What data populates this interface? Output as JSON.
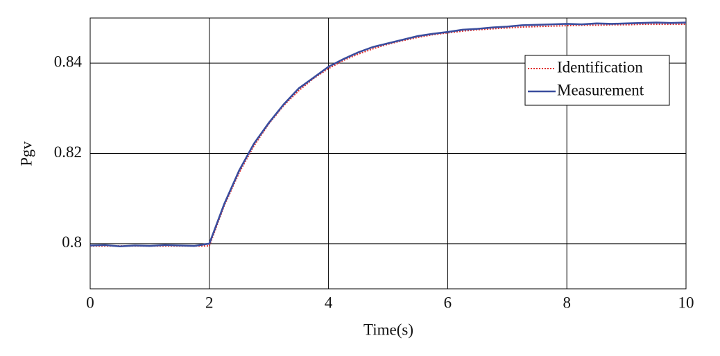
{
  "chart_data": {
    "type": "line",
    "xlabel": "Time(s)",
    "ylabel": "Pgv",
    "x": [
      0,
      0.25,
      0.5,
      0.75,
      1,
      1.25,
      1.5,
      1.75,
      2,
      2.25,
      2.5,
      2.75,
      3,
      3.25,
      3.5,
      3.75,
      4,
      4.25,
      4.5,
      4.75,
      5,
      5.25,
      5.5,
      5.75,
      6,
      6.25,
      6.5,
      6.75,
      7,
      7.25,
      7.5,
      7.75,
      8,
      8.25,
      8.5,
      8.75,
      9,
      9.25,
      9.5,
      9.75,
      10
    ],
    "series": [
      {
        "name": "Identification",
        "color": "#e0302f",
        "linestyle": "dotted",
        "values": [
          0.7995,
          0.7995,
          0.7995,
          0.7995,
          0.7995,
          0.7995,
          0.7995,
          0.7995,
          0.7995,
          0.8084,
          0.8157,
          0.8217,
          0.8266,
          0.8306,
          0.8339,
          0.8366,
          0.8388,
          0.8406,
          0.842,
          0.8432,
          0.8442,
          0.845,
          0.8457,
          0.8463,
          0.8467,
          0.8471,
          0.8474,
          0.8476,
          0.8478,
          0.848,
          0.8481,
          0.8482,
          0.8483,
          0.8484,
          0.8484,
          0.8485,
          0.8485,
          0.8486,
          0.8486,
          0.8486,
          0.8486
        ]
      },
      {
        "name": "Measurement",
        "color": "#3a4d9e",
        "linestyle": "solid",
        "values": [
          0.7996,
          0.7997,
          0.7994,
          0.7996,
          0.7995,
          0.7997,
          0.7996,
          0.7995,
          0.8,
          0.8088,
          0.8162,
          0.8222,
          0.8268,
          0.8309,
          0.8344,
          0.8368,
          0.8392,
          0.8409,
          0.8424,
          0.8436,
          0.8444,
          0.8452,
          0.846,
          0.8465,
          0.8469,
          0.8474,
          0.8476,
          0.8479,
          0.8481,
          0.8484,
          0.8485,
          0.8486,
          0.8487,
          0.8486,
          0.8488,
          0.8487,
          0.8488,
          0.8489,
          0.849,
          0.8489,
          0.849
        ]
      }
    ],
    "xlim": [
      0,
      10
    ],
    "xticks": [
      0,
      2,
      4,
      6,
      8,
      10
    ],
    "ylim": [
      0.79,
      0.85
    ],
    "yticks": [
      0.8,
      0.82,
      0.84
    ],
    "grid": true,
    "legend": "upper right"
  }
}
